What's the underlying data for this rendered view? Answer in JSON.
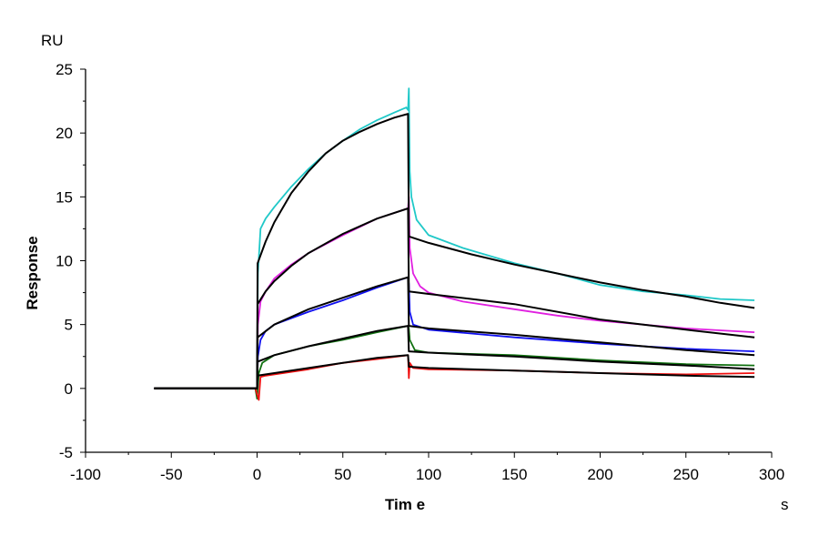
{
  "chart_data": {
    "type": "line",
    "title": "",
    "xlabel": "Tim e",
    "ylabel": "Response",
    "x_unit": "s",
    "y_unit": "RU",
    "xlim": [
      -100,
      300
    ],
    "ylim": [
      -5,
      25
    ],
    "x_ticks": [
      -100,
      -50,
      0,
      50,
      100,
      150,
      200,
      250,
      300
    ],
    "y_ticks": [
      -5,
      0,
      5,
      10,
      15,
      20,
      25
    ],
    "grid": false,
    "legend": "none",
    "series": [
      {
        "color": "#20c8c8",
        "kind": "measured",
        "points": [
          [
            -60,
            0
          ],
          [
            -1,
            0
          ],
          [
            0,
            0
          ],
          [
            0.5,
            9
          ],
          [
            2,
            12.5
          ],
          [
            5,
            13.3
          ],
          [
            10,
            14.2
          ],
          [
            20,
            15.8
          ],
          [
            30,
            17.2
          ],
          [
            40,
            18.4
          ],
          [
            50,
            19.4
          ],
          [
            60,
            20.3
          ],
          [
            70,
            21
          ],
          [
            80,
            21.6
          ],
          [
            87,
            22
          ],
          [
            88,
            21.8
          ],
          [
            88.5,
            23.5
          ],
          [
            89,
            17
          ],
          [
            90,
            15
          ],
          [
            93,
            13.2
          ],
          [
            100,
            12
          ],
          [
            120,
            11
          ],
          [
            150,
            9.8
          ],
          [
            175,
            9
          ],
          [
            200,
            8.1
          ],
          [
            225,
            7.6
          ],
          [
            250,
            7.3
          ],
          [
            270,
            7
          ],
          [
            290,
            6.9
          ]
        ]
      },
      {
        "color": "#e020e0",
        "kind": "measured",
        "points": [
          [
            -60,
            0
          ],
          [
            -1,
            0
          ],
          [
            0,
            0
          ],
          [
            0.5,
            5
          ],
          [
            2,
            6.8
          ],
          [
            5,
            7.6
          ],
          [
            10,
            8.6
          ],
          [
            20,
            9.7
          ],
          [
            30,
            10.6
          ],
          [
            50,
            12
          ],
          [
            70,
            13.3
          ],
          [
            88,
            14.1
          ],
          [
            88.5,
            15
          ],
          [
            89,
            11
          ],
          [
            91,
            9
          ],
          [
            95,
            8
          ],
          [
            100,
            7.5
          ],
          [
            120,
            6.8
          ],
          [
            150,
            6.2
          ],
          [
            175,
            5.7
          ],
          [
            200,
            5.3
          ],
          [
            250,
            4.7
          ],
          [
            290,
            4.4
          ]
        ]
      },
      {
        "color": "#1010f0",
        "kind": "measured",
        "points": [
          [
            -60,
            0
          ],
          [
            -1,
            0
          ],
          [
            0,
            0
          ],
          [
            0.5,
            2.5
          ],
          [
            2,
            3.8
          ],
          [
            5,
            4.5
          ],
          [
            10,
            5
          ],
          [
            30,
            6
          ],
          [
            50,
            6.9
          ],
          [
            70,
            7.9
          ],
          [
            88,
            8.7
          ],
          [
            88.5,
            8.2
          ],
          [
            89,
            6
          ],
          [
            91,
            5
          ],
          [
            100,
            4.6
          ],
          [
            150,
            4
          ],
          [
            200,
            3.5
          ],
          [
            250,
            3.1
          ],
          [
            290,
            2.9
          ]
        ]
      },
      {
        "color": "#107010",
        "kind": "measured",
        "points": [
          [
            -60,
            0
          ],
          [
            -1,
            0
          ],
          [
            0,
            -0.8
          ],
          [
            1,
            1.2
          ],
          [
            3,
            2
          ],
          [
            10,
            2.6
          ],
          [
            30,
            3.3
          ],
          [
            50,
            3.8
          ],
          [
            70,
            4.4
          ],
          [
            88,
            4.9
          ],
          [
            88.5,
            4.7
          ],
          [
            89,
            3.8
          ],
          [
            92,
            3
          ],
          [
            100,
            2.8
          ],
          [
            150,
            2.6
          ],
          [
            200,
            2.2
          ],
          [
            250,
            1.9
          ],
          [
            290,
            1.8
          ]
        ]
      },
      {
        "color": "#f01010",
        "kind": "measured",
        "points": [
          [
            -60,
            0
          ],
          [
            -1,
            0
          ],
          [
            1,
            -0.9
          ],
          [
            2,
            0.9
          ],
          [
            5,
            1
          ],
          [
            30,
            1.5
          ],
          [
            50,
            2
          ],
          [
            70,
            2.3
          ],
          [
            88,
            2.6
          ],
          [
            88.5,
            0.8
          ],
          [
            89,
            2
          ],
          [
            91,
            1.6
          ],
          [
            100,
            1.5
          ],
          [
            150,
            1.4
          ],
          [
            200,
            1.2
          ],
          [
            250,
            1.1
          ],
          [
            290,
            1.2
          ]
        ]
      },
      {
        "color": "#000000",
        "kind": "fit",
        "points": [
          [
            -60,
            0
          ],
          [
            0,
            0
          ],
          [
            0.3,
            9.8
          ],
          [
            5,
            11.5
          ],
          [
            10,
            13
          ],
          [
            20,
            15.3
          ],
          [
            30,
            17
          ],
          [
            40,
            18.4
          ],
          [
            50,
            19.4
          ],
          [
            60,
            20.1
          ],
          [
            70,
            20.7
          ],
          [
            80,
            21.2
          ],
          [
            88,
            21.5
          ],
          [
            88.5,
            11.9
          ],
          [
            100,
            11.4
          ],
          [
            125,
            10.5
          ],
          [
            150,
            9.7
          ],
          [
            175,
            9
          ],
          [
            200,
            8.3
          ],
          [
            225,
            7.7
          ],
          [
            250,
            7.2
          ],
          [
            270,
            6.7
          ],
          [
            290,
            6.3
          ]
        ]
      },
      {
        "color": "#000000",
        "kind": "fit",
        "points": [
          [
            -60,
            0
          ],
          [
            0,
            0
          ],
          [
            0.3,
            6.6
          ],
          [
            5,
            7.6
          ],
          [
            10,
            8.4
          ],
          [
            20,
            9.6
          ],
          [
            30,
            10.6
          ],
          [
            50,
            12.1
          ],
          [
            70,
            13.3
          ],
          [
            88,
            14.1
          ],
          [
            88.5,
            7.6
          ],
          [
            100,
            7.4
          ],
          [
            150,
            6.6
          ],
          [
            200,
            5.4
          ],
          [
            250,
            4.6
          ],
          [
            290,
            4
          ]
        ]
      },
      {
        "color": "#000000",
        "kind": "fit",
        "points": [
          [
            -60,
            0
          ],
          [
            0,
            0
          ],
          [
            0.3,
            4
          ],
          [
            10,
            5
          ],
          [
            30,
            6.2
          ],
          [
            50,
            7.1
          ],
          [
            70,
            8
          ],
          [
            88,
            8.7
          ],
          [
            88.5,
            4.9
          ],
          [
            100,
            4.7
          ],
          [
            150,
            4.2
          ],
          [
            200,
            3.6
          ],
          [
            250,
            3
          ],
          [
            290,
            2.6
          ]
        ]
      },
      {
        "color": "#000000",
        "kind": "fit",
        "points": [
          [
            -60,
            0
          ],
          [
            0,
            0
          ],
          [
            0.3,
            2.1
          ],
          [
            10,
            2.6
          ],
          [
            30,
            3.3
          ],
          [
            50,
            3.9
          ],
          [
            70,
            4.5
          ],
          [
            88,
            4.9
          ],
          [
            88.5,
            2.9
          ],
          [
            100,
            2.8
          ],
          [
            150,
            2.5
          ],
          [
            200,
            2.1
          ],
          [
            250,
            1.8
          ],
          [
            290,
            1.5
          ]
        ]
      },
      {
        "color": "#000000",
        "kind": "fit",
        "points": [
          [
            -60,
            0
          ],
          [
            0,
            0
          ],
          [
            0.3,
            1
          ],
          [
            30,
            1.6
          ],
          [
            50,
            2
          ],
          [
            70,
            2.4
          ],
          [
            88,
            2.6
          ],
          [
            88.5,
            1.7
          ],
          [
            100,
            1.6
          ],
          [
            150,
            1.4
          ],
          [
            200,
            1.2
          ],
          [
            250,
            1
          ],
          [
            290,
            0.9
          ]
        ]
      }
    ]
  }
}
